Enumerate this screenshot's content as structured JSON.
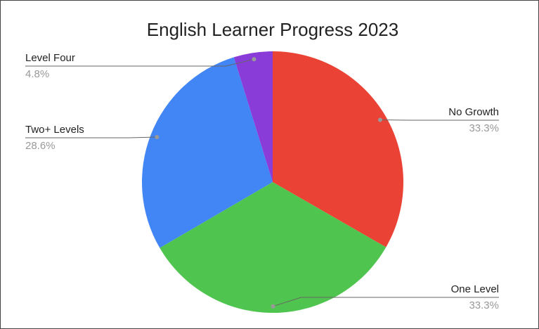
{
  "chart_data": {
    "type": "pie",
    "title": "English Learner Progress 2023",
    "categories": [
      "No Growth",
      "One Level",
      "Two+ Levels",
      "Level Four"
    ],
    "values": [
      33.3,
      33.3,
      28.6,
      4.8
    ],
    "value_labels": [
      "33.3%",
      "33.3%",
      "28.6%",
      "4.8%"
    ],
    "colors": [
      "#ea4335",
      "#4fc54f",
      "#4285f4",
      "#8a3cd8"
    ]
  }
}
